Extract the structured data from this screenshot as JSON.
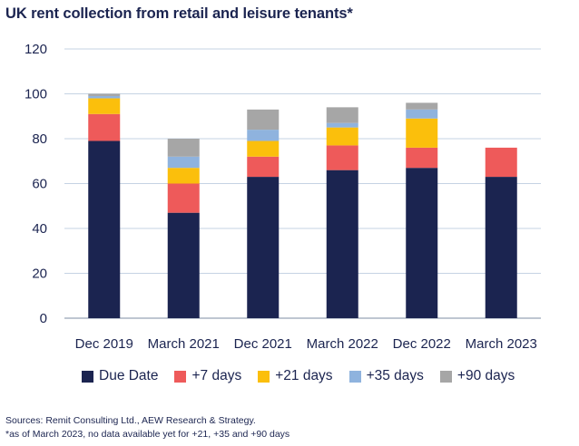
{
  "chart_data": {
    "type": "bar",
    "stacked": true,
    "title": "UK rent collection from retail and leisure tenants*",
    "categories": [
      "Dec 2019",
      "March 2021",
      "Dec 2021",
      "March 2022",
      "Dec 2022",
      "March 2023"
    ],
    "ylim": [
      0,
      120
    ],
    "yticks": [
      0,
      20,
      40,
      60,
      80,
      100,
      120
    ],
    "grid": true,
    "legend_position": "bottom",
    "series": [
      {
        "name": "Due Date",
        "color": "#1b2450",
        "values": [
          79,
          47,
          63,
          66,
          67,
          63
        ]
      },
      {
        "name": "+7 days",
        "color": "#ee5a5a",
        "values": [
          12,
          13,
          9,
          11,
          9,
          13
        ]
      },
      {
        "name": "+21 days",
        "color": "#fbbf0c",
        "values": [
          7,
          7,
          7,
          8,
          13,
          0
        ]
      },
      {
        "name": "+35 days",
        "color": "#8fb3de",
        "values": [
          1,
          5,
          5,
          2,
          4,
          0
        ]
      },
      {
        "name": "+90 days",
        "color": "#a6a6a6",
        "values": [
          1,
          8,
          9,
          7,
          3,
          0
        ]
      }
    ]
  },
  "footnotes": {
    "sources": "Sources: Remit Consulting Ltd., AEW Research & Strategy.",
    "note": "*as of March 2023, no data available yet for +21, +35 and +90 days"
  }
}
